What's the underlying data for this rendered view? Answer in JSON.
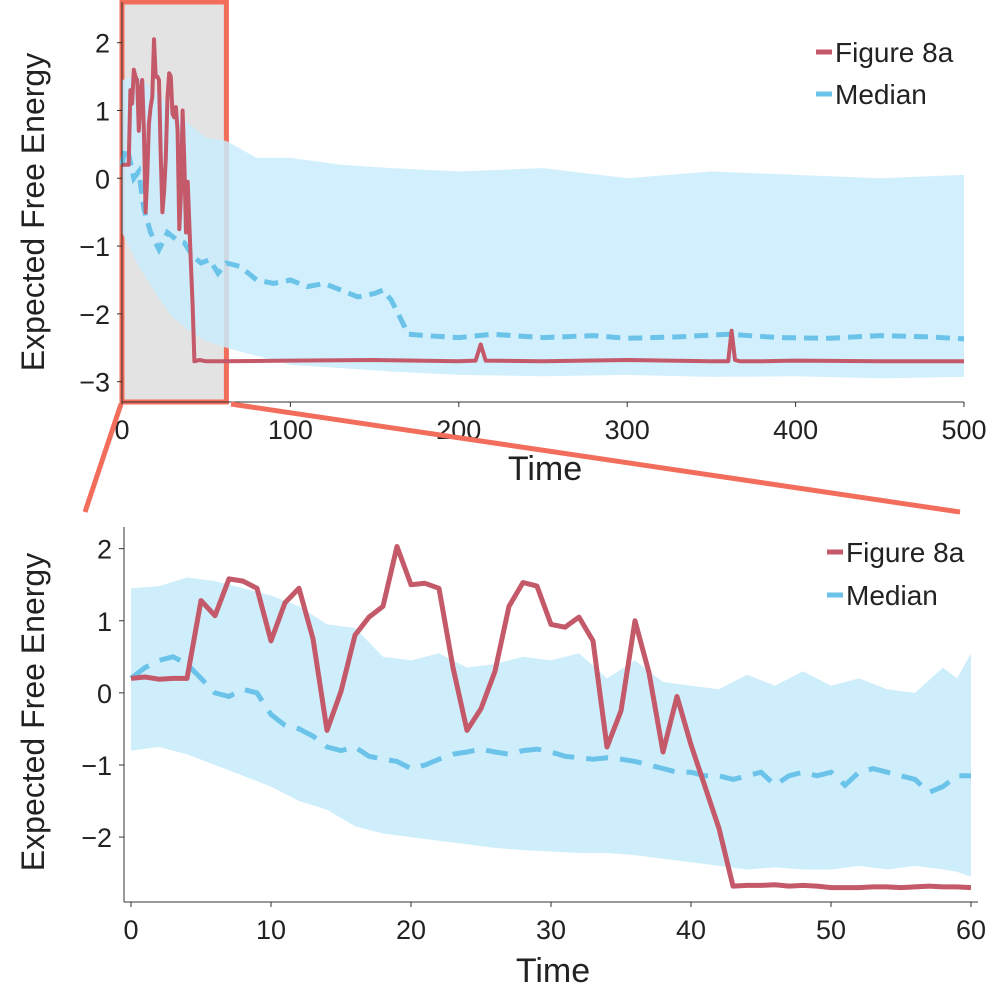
{
  "colors": {
    "main": "#c4596a",
    "median": "#6cc3ea",
    "band": "#c9ecfb",
    "zoom_fill": "#e3e3e3",
    "zoom_border": "#f26d5b"
  },
  "chart_data": [
    {
      "type": "line",
      "xlabel": "Time",
      "ylabel": "Expected Free Energy",
      "xlim": [
        0,
        500
      ],
      "ylim": [
        -3.3,
        2.6
      ],
      "xticks": [
        "0",
        "100",
        "200",
        "300",
        "400",
        "500"
      ],
      "xtick_values": [
        0,
        100,
        200,
        300,
        400,
        500
      ],
      "yticks": [
        "−3",
        "−2",
        "−1",
        "0",
        "1",
        "2"
      ],
      "ytick_values": [
        -3,
        -2,
        -1,
        0,
        1,
        2
      ],
      "legend": [
        "Figure 8a",
        "Median"
      ],
      "legend_position": "top-right",
      "highlight_region": [
        0,
        62
      ],
      "series": [
        {
          "name": "Figure 8a",
          "style": "solid",
          "x": [
            0,
            2,
            4,
            5,
            6,
            7,
            8,
            9,
            10,
            11,
            12,
            13,
            14,
            15,
            16,
            17,
            18,
            19,
            20,
            21,
            22,
            23,
            24,
            25,
            26,
            27,
            28,
            29,
            30,
            31,
            32,
            33,
            34,
            35,
            36,
            37,
            38,
            39,
            40,
            41,
            42,
            43,
            46,
            50,
            60,
            100,
            150,
            200,
            210,
            213,
            216,
            250,
            300,
            350,
            360,
            362,
            364,
            367,
            380,
            400,
            450,
            500
          ],
          "y": [
            0.2,
            0.2,
            0.2,
            1.3,
            1.1,
            1.6,
            1.5,
            1.45,
            0.7,
            1.25,
            1.45,
            0.7,
            -0.5,
            0.05,
            0.8,
            1.05,
            1.2,
            2.05,
            1.5,
            1.5,
            1.45,
            0.35,
            -0.5,
            -0.2,
            0.3,
            1.2,
            1.55,
            1.5,
            0.95,
            0.9,
            1.05,
            0.7,
            -0.75,
            -0.25,
            1.0,
            0.25,
            -0.8,
            -0.05,
            -0.7,
            -1.3,
            -1.9,
            -2.7,
            -2.68,
            -2.7,
            -2.7,
            -2.69,
            -2.68,
            -2.7,
            -2.69,
            -2.45,
            -2.69,
            -2.7,
            -2.68,
            -2.7,
            -2.7,
            -2.25,
            -2.68,
            -2.7,
            -2.7,
            -2.69,
            -2.7,
            -2.7
          ]
        },
        {
          "name": "Median",
          "style": "dashed",
          "x": [
            0,
            2,
            4,
            7,
            10,
            13,
            17,
            22,
            27,
            32,
            37,
            42,
            47,
            52,
            57,
            62,
            70,
            80,
            90,
            100,
            110,
            120,
            130,
            140,
            150,
            155,
            160,
            165,
            170,
            180,
            200,
            220,
            250,
            280,
            300,
            330,
            360,
            390,
            420,
            450,
            480,
            500
          ],
          "y": [
            0.2,
            0.45,
            0.35,
            0.0,
            0.1,
            -0.45,
            -0.8,
            -1.05,
            -0.8,
            -0.9,
            -0.95,
            -1.15,
            -1.25,
            -1.2,
            -1.4,
            -1.25,
            -1.3,
            -1.5,
            -1.55,
            -1.5,
            -1.6,
            -1.55,
            -1.65,
            -1.75,
            -1.7,
            -1.65,
            -1.8,
            -2.05,
            -2.3,
            -2.32,
            -2.35,
            -2.3,
            -2.35,
            -2.32,
            -2.36,
            -2.34,
            -2.3,
            -2.35,
            -2.36,
            -2.32,
            -2.34,
            -2.37
          ]
        }
      ],
      "band": {
        "x": [
          0,
          10,
          20,
          30,
          40,
          50,
          62,
          80,
          100,
          130,
          160,
          200,
          250,
          300,
          350,
          400,
          450,
          500
        ],
        "upper": [
          1.45,
          1.5,
          1.25,
          1.0,
          0.8,
          0.6,
          0.55,
          0.3,
          0.3,
          0.2,
          0.15,
          0.1,
          0.15,
          0.0,
          0.1,
          0.05,
          0.0,
          0.05
        ],
        "lower": [
          -0.8,
          -1.3,
          -1.7,
          -2.05,
          -2.25,
          -2.4,
          -2.5,
          -2.62,
          -2.75,
          -2.8,
          -2.85,
          -2.9,
          -2.92,
          -2.9,
          -2.93,
          -2.92,
          -2.95,
          -2.93
        ]
      }
    },
    {
      "type": "line",
      "xlabel": "Time",
      "ylabel": "Expected Free Energy",
      "xlim": [
        -0.5,
        60.5
      ],
      "ylim": [
        -2.9,
        2.3
      ],
      "xticks": [
        "0",
        "10",
        "20",
        "30",
        "40",
        "50",
        "60"
      ],
      "xtick_values": [
        0,
        10,
        20,
        30,
        40,
        50,
        60
      ],
      "yticks": [
        "−2",
        "−1",
        "0",
        "1",
        "2"
      ],
      "ytick_values": [
        -2,
        -1,
        0,
        1,
        2
      ],
      "legend": [
        "Figure 8a",
        "Median"
      ],
      "legend_position": "top-right",
      "series": [
        {
          "name": "Figure 8a",
          "style": "solid",
          "x": [
            0,
            1,
            2,
            3,
            4,
            5,
            6,
            7,
            8,
            9,
            10,
            11,
            12,
            13,
            14,
            15,
            16,
            17,
            18,
            19,
            20,
            21,
            22,
            23,
            24,
            25,
            26,
            27,
            28,
            29,
            30,
            31,
            32,
            33,
            34,
            35,
            36,
            37,
            38,
            39,
            40,
            41,
            42,
            43,
            44,
            45,
            46,
            47,
            48,
            49,
            50,
            51,
            52,
            53,
            54,
            55,
            56,
            57,
            58,
            59,
            60
          ],
          "y": [
            0.2,
            0.22,
            0.19,
            0.2,
            0.2,
            1.28,
            1.07,
            1.58,
            1.55,
            1.45,
            0.72,
            1.25,
            1.45,
            0.75,
            -0.52,
            0.02,
            0.8,
            1.05,
            1.2,
            2.03,
            1.5,
            1.52,
            1.45,
            0.35,
            -0.52,
            -0.22,
            0.3,
            1.2,
            1.53,
            1.48,
            0.95,
            0.91,
            1.05,
            0.72,
            -0.75,
            -0.25,
            1.0,
            0.28,
            -0.82,
            -0.05,
            -0.72,
            -1.3,
            -1.88,
            -2.68,
            -2.67,
            -2.67,
            -2.66,
            -2.68,
            -2.67,
            -2.68,
            -2.7,
            -2.7,
            -2.7,
            -2.69,
            -2.69,
            -2.7,
            -2.69,
            -2.68,
            -2.69,
            -2.69,
            -2.7
          ]
        },
        {
          "name": "Median",
          "style": "dashed",
          "x": [
            0,
            1,
            2,
            3,
            4,
            5,
            6,
            7,
            8,
            9,
            10,
            11,
            12,
            13,
            14,
            15,
            16,
            17,
            18,
            19,
            20,
            21,
            22,
            23,
            24,
            25,
            26,
            27,
            28,
            29,
            30,
            31,
            32,
            33,
            34,
            35,
            36,
            37,
            38,
            39,
            40,
            41,
            42,
            43,
            44,
            45,
            46,
            47,
            48,
            49,
            50,
            51,
            52,
            53,
            54,
            55,
            56,
            57,
            58,
            59,
            60
          ],
          "y": [
            0.2,
            0.35,
            0.45,
            0.5,
            0.4,
            0.2,
            0.0,
            -0.05,
            0.05,
            0.0,
            -0.3,
            -0.45,
            -0.5,
            -0.6,
            -0.75,
            -0.8,
            -0.75,
            -0.88,
            -0.92,
            -0.95,
            -1.05,
            -1.0,
            -0.92,
            -0.85,
            -0.82,
            -0.78,
            -0.82,
            -0.85,
            -0.8,
            -0.78,
            -0.82,
            -0.88,
            -0.9,
            -0.92,
            -0.9,
            -0.92,
            -0.95,
            -1.0,
            -1.05,
            -1.1,
            -1.1,
            -1.15,
            -1.15,
            -1.2,
            -1.15,
            -1.1,
            -1.28,
            -1.15,
            -1.1,
            -1.15,
            -1.1,
            -1.28,
            -1.1,
            -1.05,
            -1.1,
            -1.15,
            -1.2,
            -1.38,
            -1.3,
            -1.15,
            -1.15
          ]
        }
      ],
      "band": {
        "x": [
          0,
          2,
          4,
          6,
          8,
          10,
          12,
          14,
          16,
          18,
          20,
          22,
          24,
          26,
          28,
          30,
          32,
          34,
          36,
          38,
          40,
          42,
          44,
          46,
          48,
          50,
          52,
          54,
          56,
          58,
          59,
          60
        ],
        "upper": [
          1.45,
          1.48,
          1.6,
          1.55,
          1.45,
          1.35,
          1.2,
          0.95,
          0.9,
          0.5,
          0.45,
          0.55,
          0.35,
          0.4,
          0.5,
          0.45,
          0.55,
          0.2,
          0.45,
          0.15,
          0.1,
          0.05,
          0.25,
          0.1,
          0.3,
          0.1,
          0.2,
          0.05,
          0.0,
          0.35,
          0.2,
          0.55
        ],
        "lower": [
          -0.8,
          -0.75,
          -0.85,
          -1.0,
          -1.15,
          -1.3,
          -1.5,
          -1.62,
          -1.85,
          -1.95,
          -2.0,
          -2.05,
          -2.1,
          -2.15,
          -2.18,
          -2.2,
          -2.22,
          -2.22,
          -2.25,
          -2.3,
          -2.35,
          -2.4,
          -2.45,
          -2.42,
          -2.45,
          -2.45,
          -2.4,
          -2.45,
          -2.4,
          -2.45,
          -2.48,
          -2.55
        ]
      }
    }
  ]
}
